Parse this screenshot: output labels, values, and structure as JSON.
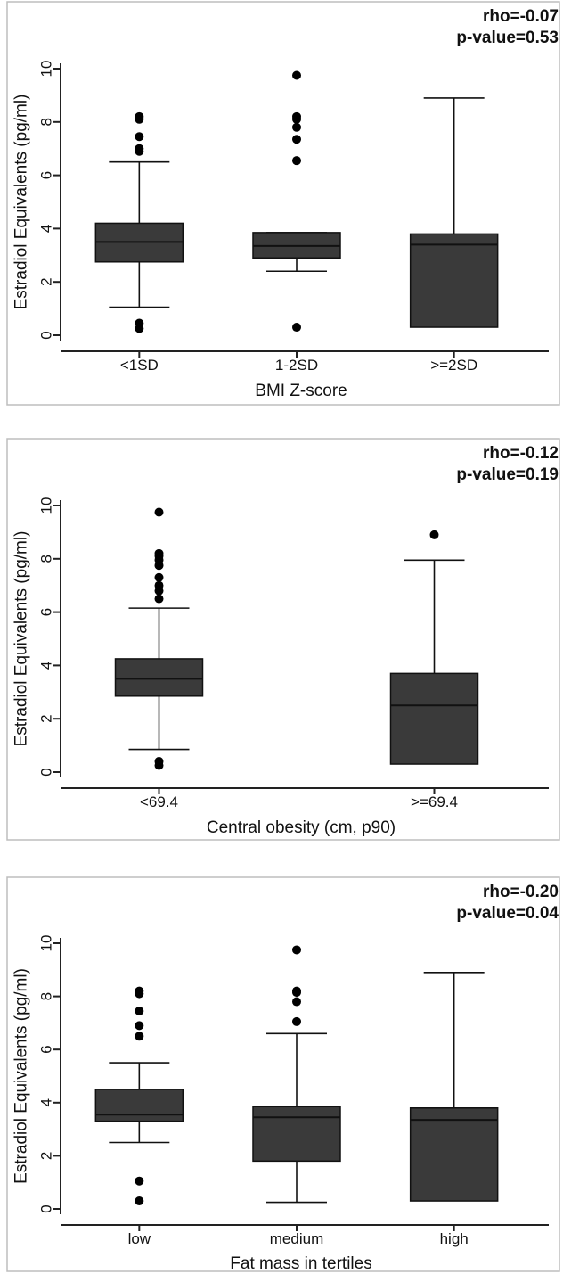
{
  "chart_data": [
    {
      "type": "box",
      "xlabel": "BMI Z-score",
      "ylabel": "Estradiol Equivalents (pg/ml)",
      "ylim": [
        0,
        10
      ],
      "yticks": [
        0,
        2,
        4,
        6,
        8,
        10
      ],
      "annotation": [
        "rho=-0.07",
        "p-value=0.53"
      ],
      "groups": [
        {
          "label": "<1SD",
          "lower_whisker": 1.05,
          "q1": 2.75,
          "median": 3.5,
          "q3": 4.2,
          "upper_whisker": 6.5,
          "outliers": [
            0.25,
            0.45,
            6.9,
            7.0,
            7.45,
            8.1,
            8.2
          ]
        },
        {
          "label": "1-2SD",
          "lower_whisker": 2.4,
          "q1": 2.9,
          "median": 3.35,
          "q3": 3.85,
          "upper_whisker": 3.85,
          "outliers": [
            0.3,
            6.55,
            7.35,
            7.8,
            8.1,
            8.2,
            9.75
          ]
        },
        {
          "label": ">=2SD",
          "lower_whisker": 0.3,
          "q1": 0.3,
          "median": 3.4,
          "q3": 3.8,
          "upper_whisker": 8.9,
          "outliers": []
        }
      ]
    },
    {
      "type": "box",
      "xlabel": "Central obesity (cm, p90)",
      "ylabel": "Estradiol Equivalents (pg/ml)",
      "ylim": [
        0,
        10
      ],
      "yticks": [
        0,
        2,
        4,
        6,
        8,
        10
      ],
      "annotation": [
        "rho=-0.12",
        "p-value=0.19"
      ],
      "groups": [
        {
          "label": "<69.4",
          "lower_whisker": 0.85,
          "q1": 2.85,
          "median": 3.5,
          "q3": 4.25,
          "upper_whisker": 6.15,
          "outliers": [
            0.25,
            0.4,
            6.5,
            6.8,
            7.0,
            7.3,
            7.75,
            7.95,
            8.1,
            8.2,
            9.75
          ]
        },
        {
          "label": ">=69.4",
          "lower_whisker": 0.3,
          "q1": 0.3,
          "median": 2.5,
          "q3": 3.7,
          "upper_whisker": 7.95,
          "outliers": [
            8.9
          ]
        }
      ]
    },
    {
      "type": "box",
      "xlabel": "Fat mass in tertiles",
      "ylabel": "Estradiol Equivalents (pg/ml)",
      "ylim": [
        0,
        10
      ],
      "yticks": [
        0,
        2,
        4,
        6,
        8,
        10
      ],
      "annotation": [
        "rho=-0.20",
        "p-value=0.04"
      ],
      "groups": [
        {
          "label": "low",
          "lower_whisker": 2.5,
          "q1": 3.3,
          "median": 3.55,
          "q3": 4.5,
          "upper_whisker": 5.5,
          "outliers": [
            0.3,
            1.05,
            6.5,
            6.9,
            7.45,
            8.1,
            8.2
          ]
        },
        {
          "label": "medium",
          "lower_whisker": 0.25,
          "q1": 1.8,
          "median": 3.45,
          "q3": 3.85,
          "upper_whisker": 6.6,
          "outliers": [
            7.05,
            7.8,
            8.15,
            8.2,
            9.75
          ]
        },
        {
          "label": "high",
          "lower_whisker": 0.3,
          "q1": 0.3,
          "median": 3.35,
          "q3": 3.8,
          "upper_whisker": 8.9,
          "outliers": []
        }
      ]
    }
  ],
  "colors": {
    "box_fill": "#3a3a3a",
    "outline": "#111111",
    "outlier": "#000000",
    "frame": "#bdbdbd"
  }
}
